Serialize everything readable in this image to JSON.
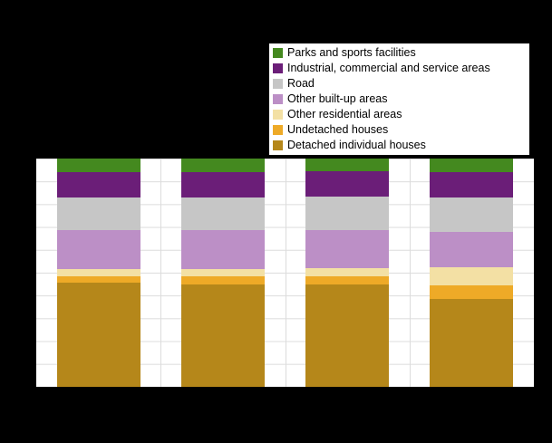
{
  "chart": {
    "page_background": "#000000",
    "plot_background": "#ffffff",
    "grid_color": "#dcdcdc",
    "legend_border_color": "#000000",
    "legend_background": "#ffffff"
  },
  "chart_data": {
    "type": "bar",
    "stacked": true,
    "unit": "percent",
    "categories": [
      "",
      "",
      "",
      ""
    ],
    "series": [
      {
        "name": "Detached individual houses",
        "color": "#b5871a",
        "values": [
          45.5,
          45.0,
          45.0,
          38.5
        ]
      },
      {
        "name": "Undetached houses",
        "color": "#eeaa27",
        "values": [
          3.0,
          3.5,
          3.5,
          6.0
        ]
      },
      {
        "name": "Other residential areas",
        "color": "#f3e0a4",
        "values": [
          3.0,
          3.0,
          3.5,
          8.0
        ]
      },
      {
        "name": "Other built-up areas",
        "color": "#bc8fc6",
        "values": [
          17.0,
          17.0,
          16.5,
          15.5
        ]
      },
      {
        "name": "Road",
        "color": "#c6c6c6",
        "values": [
          14.5,
          14.5,
          15.0,
          15.0
        ]
      },
      {
        "name": "Industrial, commercial and service areas",
        "color": "#6b1e78",
        "values": [
          11.0,
          11.0,
          11.0,
          11.0
        ]
      },
      {
        "name": "Parks and sports facilities",
        "color": "#44891f",
        "values": [
          6.0,
          6.0,
          5.5,
          6.0
        ]
      }
    ],
    "ylim": [
      0,
      100
    ],
    "grid": true,
    "legend_position": "top-right",
    "legend_order_top_to_bottom": [
      "Parks and sports facilities",
      "Industrial, commercial and service areas",
      "Road",
      "Other built-up areas",
      "Other residential areas",
      "Undetached houses",
      "Detached individual houses"
    ]
  }
}
